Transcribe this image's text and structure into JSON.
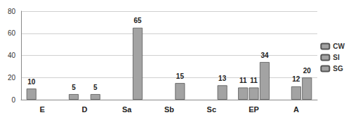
{
  "chart_data": {
    "type": "bar",
    "categories": [
      "E",
      "D",
      "Sa",
      "Sb",
      "Sc",
      "EP",
      "A"
    ],
    "series": [
      {
        "name": "SG",
        "color": "#a3a3a3",
        "values": [
          10,
          5,
          null,
          null,
          null,
          11,
          null
        ]
      },
      {
        "name": "SI",
        "color": "#a3a3a3",
        "values": [
          null,
          null,
          null,
          null,
          null,
          11,
          12
        ]
      },
      {
        "name": "CW",
        "color": "#a3a3a3",
        "values": [
          null,
          5,
          65,
          15,
          13,
          34,
          20
        ]
      }
    ],
    "ylim": [
      0,
      80
    ],
    "yticks": [
      0,
      20,
      40,
      60,
      80
    ],
    "grid": true,
    "data_labels": true,
    "legend": "right"
  }
}
